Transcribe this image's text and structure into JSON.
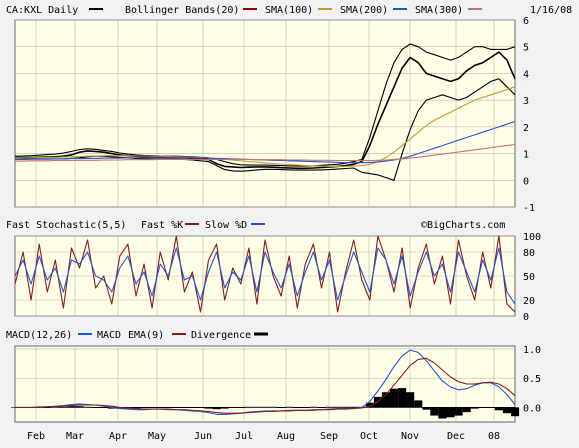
{
  "colors": {
    "background": "#f2f2f2",
    "plot_bg": "#ffffe8",
    "grid": "#b8b8a6",
    "frame": "#666666",
    "price": "#000000",
    "bollinger": "#8b0000",
    "sma100": "#c8962e",
    "sma200": "#2255cc",
    "sma300": "#c87070",
    "fast_k": "#8b1a1a",
    "slow_d": "#2255dd",
    "macd": "#2255dd",
    "macd_ema": "#8b1a1a",
    "divergence": "#000000"
  },
  "header": {
    "symbol": "CA:KXL Daily",
    "legend_bollinger": "Bollinger Bands(20)",
    "legend_sma100": "SMA(100)",
    "legend_sma200": "SMA(200)",
    "legend_sma300": "SMA(300)",
    "date": "1/16/08"
  },
  "stoch_header": {
    "title": "Fast Stochastic(5,5)",
    "fast_k": "Fast %K",
    "slow_d": "Slow %D",
    "watermark": "©BigCharts.com"
  },
  "macd_header": {
    "title": "MACD(12,26)",
    "macd": "MACD",
    "ema": "EMA(9)",
    "divergence": "Divergence"
  },
  "chart_data": [
    {
      "type": "line",
      "panel": "price",
      "ylim": [
        -1,
        6
      ],
      "y_ticks": [
        "-1",
        "0",
        "1",
        "2",
        "3",
        "4",
        "5",
        "6"
      ],
      "x_ticks": [
        "Feb",
        "Mar",
        "Apr",
        "May",
        "Jun",
        "Jul",
        "Aug",
        "Sep",
        "Oct",
        "Nov",
        "Dec",
        "08"
      ],
      "grid": true,
      "legend": "top",
      "series": [
        {
          "name": "CA:KXL Daily",
          "key": "price",
          "values": [
            0.85,
            0.85,
            0.85,
            0.86,
            0.87,
            0.88,
            0.9,
            0.95,
            1.05,
            1.1,
            1.08,
            1.05,
            1.0,
            0.95,
            0.92,
            0.9,
            0.88,
            0.87,
            0.86,
            0.86,
            0.85,
            0.84,
            0.82,
            0.8,
            0.78,
            0.62,
            0.52,
            0.5,
            0.48,
            0.49,
            0.5,
            0.5,
            0.49,
            0.47,
            0.46,
            0.45,
            0.45,
            0.46,
            0.48,
            0.5,
            0.52,
            0.55,
            0.6,
            0.7,
            1.3,
            2.1,
            2.8,
            3.5,
            4.2,
            4.6,
            4.4,
            4.0,
            3.9,
            3.8,
            3.7,
            3.8,
            4.1,
            4.3,
            4.4,
            4.6,
            4.8,
            4.5,
            3.8
          ]
        },
        {
          "name": "Bollinger Upper",
          "key": "bb_upper",
          "values": [
            0.9,
            0.91,
            0.92,
            0.94,
            0.96,
            0.98,
            1.02,
            1.08,
            1.15,
            1.18,
            1.16,
            1.12,
            1.08,
            1.02,
            0.98,
            0.95,
            0.93,
            0.92,
            0.91,
            0.9,
            0.9,
            0.89,
            0.88,
            0.86,
            0.84,
            0.78,
            0.7,
            0.62,
            0.58,
            0.57,
            0.57,
            0.57,
            0.56,
            0.55,
            0.54,
            0.53,
            0.53,
            0.54,
            0.56,
            0.58,
            0.6,
            0.64,
            0.7,
            0.78,
            1.6,
            2.6,
            3.6,
            4.4,
            4.9,
            5.1,
            5.0,
            4.8,
            4.7,
            4.6,
            4.5,
            4.6,
            4.8,
            5.0,
            5.0,
            4.9,
            4.9,
            4.9,
            5.0
          ]
        },
        {
          "name": "Bollinger Lower",
          "key": "bb_lower",
          "values": [
            0.78,
            0.79,
            0.8,
            0.8,
            0.8,
            0.8,
            0.8,
            0.82,
            0.84,
            0.88,
            0.9,
            0.9,
            0.88,
            0.86,
            0.84,
            0.82,
            0.8,
            0.79,
            0.79,
            0.79,
            0.79,
            0.78,
            0.76,
            0.73,
            0.7,
            0.55,
            0.4,
            0.35,
            0.34,
            0.36,
            0.39,
            0.41,
            0.41,
            0.4,
            0.39,
            0.38,
            0.38,
            0.38,
            0.39,
            0.4,
            0.42,
            0.44,
            0.46,
            0.3,
            0.25,
            0.2,
            0.1,
            0.0,
            1.0,
            1.9,
            2.6,
            3.0,
            3.1,
            3.2,
            3.1,
            3.0,
            3.1,
            3.3,
            3.5,
            3.7,
            3.8,
            3.5,
            3.2
          ]
        },
        {
          "name": "SMA(100)",
          "key": "sma100",
          "values": [
            0.84,
            0.84,
            0.84,
            0.85,
            0.85,
            0.86,
            0.87,
            0.88,
            0.89,
            0.9,
            0.91,
            0.92,
            0.92,
            0.92,
            0.92,
            0.91,
            0.91,
            0.9,
            0.9,
            0.89,
            0.88,
            0.87,
            0.86,
            0.85,
            0.83,
            0.81,
            0.78,
            0.76,
            0.73,
            0.7,
            0.68,
            0.65,
            0.63,
            0.61,
            0.59,
            0.57,
            0.55,
            0.54,
            0.53,
            0.52,
            0.52,
            0.52,
            0.53,
            0.55,
            0.6,
            0.7,
            0.85,
            1.05,
            1.3,
            1.55,
            1.8,
            2.05,
            2.25,
            2.4,
            2.55,
            2.7,
            2.85,
            3.0,
            3.1,
            3.2,
            3.3,
            3.4,
            3.5
          ]
        },
        {
          "name": "SMA(200)",
          "key": "sma200",
          "values": [
            0.78,
            0.78,
            0.79,
            0.79,
            0.79,
            0.8,
            0.8,
            0.81,
            0.81,
            0.82,
            0.82,
            0.83,
            0.83,
            0.83,
            0.84,
            0.84,
            0.84,
            0.84,
            0.84,
            0.84,
            0.84,
            0.84,
            0.84,
            0.83,
            0.83,
            0.82,
            0.81,
            0.8,
            0.79,
            0.78,
            0.77,
            0.76,
            0.75,
            0.74,
            0.73,
            0.72,
            0.71,
            0.7,
            0.69,
            0.68,
            0.67,
            0.66,
            0.66,
            0.66,
            0.67,
            0.69,
            0.72,
            0.76,
            0.82,
            0.9,
            1.0,
            1.1,
            1.2,
            1.3,
            1.4,
            1.5,
            1.6,
            1.7,
            1.8,
            1.9,
            2.0,
            2.1,
            2.2
          ]
        },
        {
          "name": "SMA(300)",
          "key": "sma300",
          "values": [
            0.72,
            0.72,
            0.73,
            0.73,
            0.73,
            0.74,
            0.74,
            0.74,
            0.75,
            0.75,
            0.75,
            0.76,
            0.76,
            0.76,
            0.77,
            0.77,
            0.77,
            0.77,
            0.78,
            0.78,
            0.78,
            0.78,
            0.78,
            0.78,
            0.78,
            0.78,
            0.78,
            0.78,
            0.78,
            0.78,
            0.77,
            0.77,
            0.77,
            0.77,
            0.76,
            0.76,
            0.76,
            0.75,
            0.75,
            0.75,
            0.74,
            0.74,
            0.74,
            0.74,
            0.74,
            0.75,
            0.76,
            0.78,
            0.8,
            0.83,
            0.86,
            0.9,
            0.94,
            0.98,
            1.02,
            1.06,
            1.1,
            1.14,
            1.18,
            1.22,
            1.26,
            1.3,
            1.34
          ]
        }
      ]
    },
    {
      "type": "line",
      "panel": "stochastic",
      "ylim": [
        0,
        100
      ],
      "y_ticks": [
        "0",
        "20",
        "50",
        "80",
        "100"
      ],
      "grid": true,
      "series": [
        {
          "name": "Fast %K",
          "key": "fast_k",
          "values": [
            40,
            80,
            20,
            90,
            30,
            70,
            10,
            85,
            60,
            95,
            35,
            50,
            15,
            75,
            90,
            25,
            65,
            10,
            80,
            45,
            100,
            30,
            55,
            5,
            70,
            90,
            20,
            60,
            40,
            85,
            15,
            95,
            50,
            25,
            75,
            10,
            65,
            90,
            35,
            80,
            5,
            55,
            95,
            45,
            20,
            100,
            70,
            30,
            85,
            10,
            60,
            90,
            40,
            75,
            15,
            95,
            50,
            20,
            80,
            35,
            100,
            15,
            5
          ]
        },
        {
          "name": "Slow %D",
          "key": "slow_d",
          "values": [
            50,
            70,
            40,
            75,
            45,
            60,
            30,
            70,
            65,
            80,
            50,
            45,
            30,
            60,
            75,
            40,
            55,
            25,
            65,
            50,
            85,
            45,
            50,
            20,
            55,
            80,
            35,
            55,
            45,
            75,
            30,
            80,
            55,
            35,
            65,
            25,
            55,
            80,
            45,
            70,
            20,
            50,
            80,
            55,
            30,
            85,
            70,
            40,
            75,
            25,
            55,
            80,
            50,
            65,
            30,
            80,
            55,
            30,
            70,
            45,
            85,
            30,
            15
          ]
        }
      ]
    },
    {
      "type": "line",
      "panel": "macd",
      "ylim": [
        -0.25,
        1.05
      ],
      "y_ticks": [
        "0.0",
        "0.5",
        "1.0"
      ],
      "grid": true,
      "series": [
        {
          "name": "MACD",
          "key": "macd",
          "values": [
            0.0,
            0.0,
            0.0,
            0.01,
            0.01,
            0.02,
            0.03,
            0.05,
            0.06,
            0.05,
            0.04,
            0.02,
            0.0,
            -0.02,
            -0.03,
            -0.04,
            -0.04,
            -0.03,
            -0.03,
            -0.04,
            -0.04,
            -0.05,
            -0.06,
            -0.07,
            -0.09,
            -0.12,
            -0.12,
            -0.11,
            -0.1,
            -0.08,
            -0.07,
            -0.06,
            -0.06,
            -0.06,
            -0.05,
            -0.05,
            -0.05,
            -0.04,
            -0.04,
            -0.03,
            -0.02,
            -0.02,
            -0.01,
            0.0,
            0.1,
            0.28,
            0.48,
            0.7,
            0.88,
            0.98,
            0.94,
            0.8,
            0.62,
            0.45,
            0.35,
            0.3,
            0.32,
            0.38,
            0.42,
            0.42,
            0.35,
            0.22,
            0.05
          ]
        },
        {
          "name": "MACD EMA(9)",
          "key": "macd_ema",
          "values": [
            0.0,
            0.0,
            0.0,
            0.0,
            0.01,
            0.01,
            0.02,
            0.03,
            0.04,
            0.04,
            0.04,
            0.03,
            0.02,
            0.0,
            -0.01,
            -0.02,
            -0.03,
            -0.03,
            -0.03,
            -0.03,
            -0.04,
            -0.04,
            -0.05,
            -0.06,
            -0.07,
            -0.09,
            -0.1,
            -0.1,
            -0.1,
            -0.09,
            -0.08,
            -0.07,
            -0.07,
            -0.06,
            -0.06,
            -0.05,
            -0.05,
            -0.05,
            -0.04,
            -0.04,
            -0.03,
            -0.03,
            -0.02,
            -0.01,
            0.02,
            0.1,
            0.22,
            0.38,
            0.55,
            0.72,
            0.82,
            0.84,
            0.76,
            0.64,
            0.52,
            0.44,
            0.4,
            0.4,
            0.42,
            0.43,
            0.4,
            0.32,
            0.2
          ]
        }
      ]
    }
  ]
}
